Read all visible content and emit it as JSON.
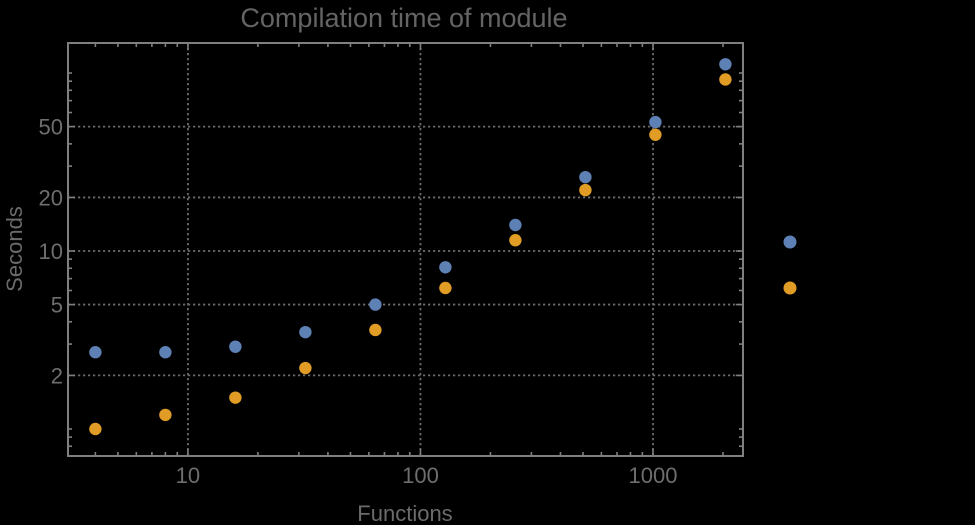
{
  "chart_data": {
    "type": "scatter",
    "title": "Compilation time of module",
    "xlabel": "Functions",
    "ylabel": "Seconds",
    "x_scale": "log",
    "y_scale": "log",
    "xlim": [
      3.05,
      2438
    ],
    "ylim": [
      0.705,
      147.5
    ],
    "grid": "dotted gridlines at labeled major ticks only",
    "legend_position": "right-of-frame, labels not visible",
    "x": [
      4,
      8,
      16,
      32,
      64,
      128,
      256,
      512,
      1024,
      2048
    ],
    "series": [
      {
        "name": "series-1-blue",
        "color": "#5e81b5",
        "values": [
          2.7,
          2.7,
          2.9,
          3.5,
          5.0,
          8.1,
          14,
          26,
          53,
          112
        ]
      },
      {
        "name": "series-2-orange",
        "color": "#e09c24",
        "values": [
          1.0,
          1.2,
          1.5,
          2.2,
          3.6,
          6.2,
          11.5,
          22,
          45,
          92
        ]
      }
    ],
    "x_ticks": [
      {
        "v": 10,
        "label": "10"
      },
      {
        "v": 100,
        "label": "100"
      },
      {
        "v": 1000,
        "label": "1000"
      }
    ],
    "y_ticks": [
      {
        "v": 2,
        "label": "2"
      },
      {
        "v": 5,
        "label": "5"
      },
      {
        "v": 10,
        "label": "10"
      },
      {
        "v": 20,
        "label": "20"
      },
      {
        "v": 50,
        "label": "50"
      }
    ],
    "x_minor_ticks": [
      4,
      5,
      6,
      7,
      8,
      9,
      20,
      30,
      40,
      50,
      60,
      70,
      80,
      90,
      200,
      300,
      400,
      500,
      600,
      700,
      800,
      900,
      2000
    ],
    "y_minor_ticks": [
      0.8,
      0.9,
      1,
      3,
      4,
      6,
      7,
      8,
      9,
      30,
      40,
      60,
      70,
      80,
      90,
      100
    ],
    "legend": {
      "marker_colors": [
        "#5e81b5",
        "#e09c24"
      ],
      "labels_visible": false
    },
    "colors": {
      "background": "#000000",
      "frame": "#7f7f7f",
      "grid": "#6b6b6b",
      "tick_label": "#6e6e6e",
      "axis_label": "#6b6b6b",
      "title": "#646464"
    }
  }
}
